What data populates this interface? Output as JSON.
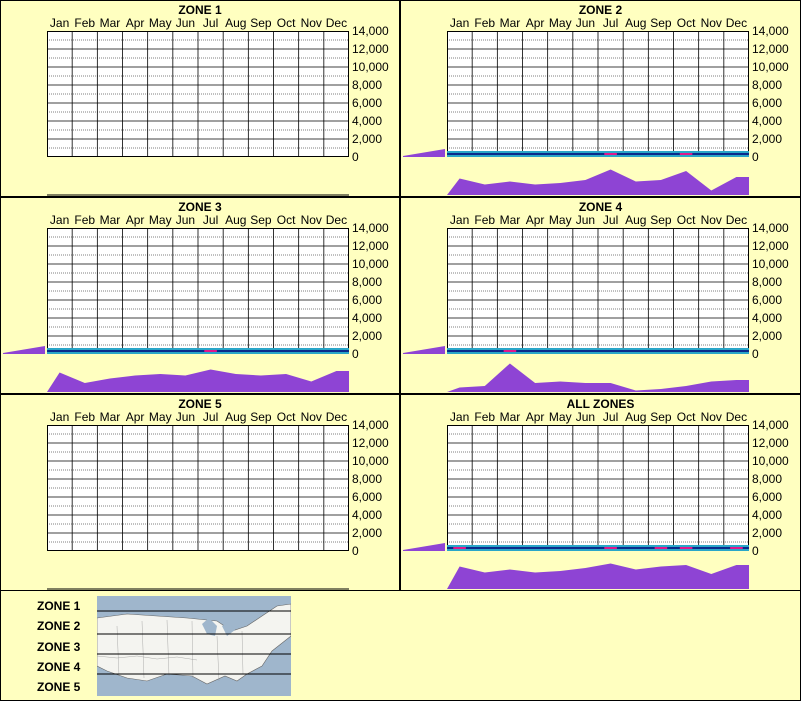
{
  "months": [
    "Jan",
    "Feb",
    "Mar",
    "Apr",
    "May",
    "Jun",
    "Jul",
    "Aug",
    "Sep",
    "Oct",
    "Nov",
    "Dec"
  ],
  "y_ticks": [
    "14,000",
    "12,000",
    "10,000",
    "8,000",
    "6,000",
    "4,000",
    "2,000",
    "0"
  ],
  "colors": {
    "background": "#ffffc0",
    "profile": "#8e44d4",
    "heat_dark": "#0a2a8a",
    "heat_mid": "#2aa6c8",
    "heat_peak": "#e0168c"
  },
  "chart_data": [
    {
      "type": "heatmap",
      "title": "ZONE 1",
      "ylim": [
        0,
        14000
      ],
      "has_data": false
    },
    {
      "type": "heatmap",
      "title": "ZONE 2",
      "ylim": [
        0,
        14000
      ],
      "has_data": true,
      "monthly_profile": [
        0.55,
        0.35,
        0.45,
        0.35,
        0.4,
        0.5,
        0.85,
        0.45,
        0.5,
        0.8,
        0.15,
        0.6
      ]
    },
    {
      "type": "heatmap",
      "title": "ZONE 3",
      "ylim": [
        0,
        14000
      ],
      "has_data": true,
      "monthly_profile": [
        0.65,
        0.3,
        0.45,
        0.55,
        0.6,
        0.55,
        0.75,
        0.6,
        0.55,
        0.6,
        0.35,
        0.7
      ]
    },
    {
      "type": "heatmap",
      "title": "ZONE 4",
      "ylim": [
        0,
        14000
      ],
      "has_data": true,
      "monthly_profile": [
        0.15,
        0.2,
        0.95,
        0.3,
        0.35,
        0.3,
        0.3,
        0.05,
        0.1,
        0.2,
        0.35,
        0.4
      ]
    },
    {
      "type": "heatmap",
      "title": "ZONE 5",
      "ylim": [
        0,
        14000
      ],
      "has_data": false
    },
    {
      "type": "heatmap",
      "title": "ALL ZONES",
      "ylim": [
        0,
        14000
      ],
      "has_data": true,
      "monthly_profile": [
        0.75,
        0.55,
        0.65,
        0.55,
        0.6,
        0.7,
        0.85,
        0.65,
        0.75,
        0.8,
        0.5,
        0.8
      ]
    }
  ],
  "legend": {
    "zones": [
      "ZONE 1",
      "ZONE 2",
      "ZONE 3",
      "ZONE 4",
      "ZONE 5"
    ]
  }
}
